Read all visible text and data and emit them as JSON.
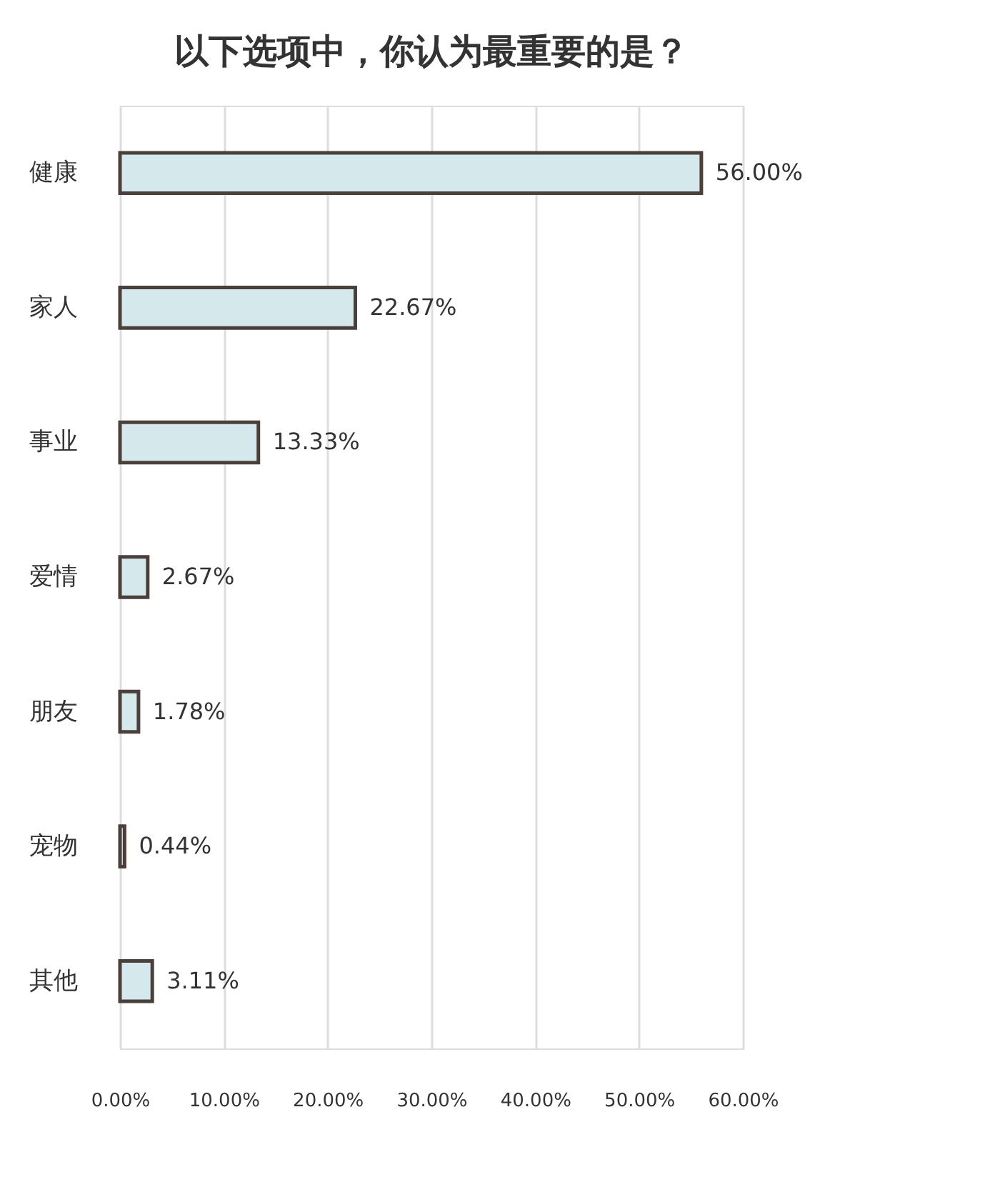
{
  "chart_data": {
    "type": "bar",
    "orientation": "horizontal",
    "title": "以下选项中，你认为最重要的是？",
    "categories": [
      "健康",
      "家人",
      "事业",
      "爱情",
      "朋友",
      "宠物",
      "其他"
    ],
    "values": [
      56.0,
      22.67,
      13.33,
      2.67,
      1.78,
      0.44,
      3.11
    ],
    "value_labels": [
      "56.00%",
      "22.67%",
      "13.33%",
      "2.67%",
      "1.78%",
      "0.44%",
      "3.11%"
    ],
    "color": "#d5e8ec",
    "xlim": [
      0,
      60
    ],
    "xticks": [
      {
        "value": 0,
        "label": "0.00%"
      },
      {
        "value": 10,
        "label": "10.00%"
      },
      {
        "value": 20,
        "label": "20.00%"
      },
      {
        "value": 30,
        "label": "30.00%"
      },
      {
        "value": 40,
        "label": "40.00%"
      },
      {
        "value": 50,
        "label": "50.00%"
      },
      {
        "value": 60,
        "label": "60.00%"
      }
    ],
    "grid": "x"
  }
}
